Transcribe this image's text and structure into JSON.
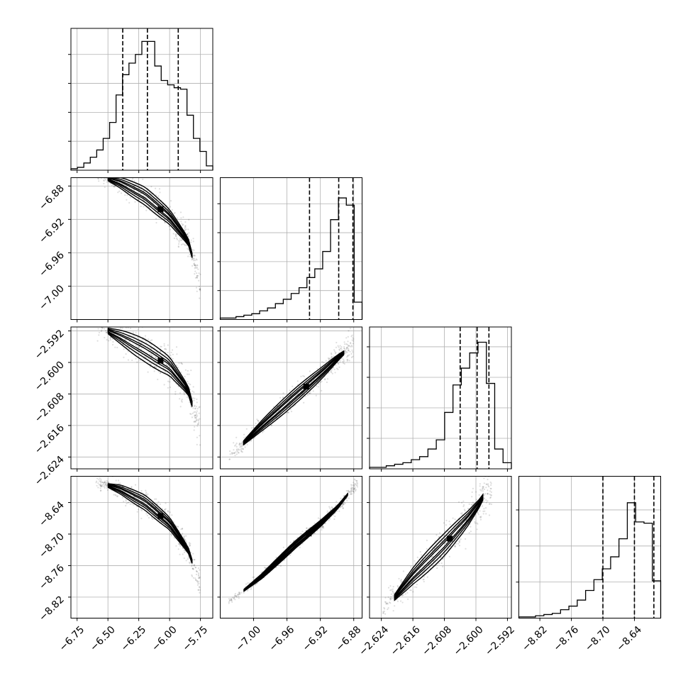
{
  "chart_data": {
    "type": "corner",
    "parameters": [
      {
        "range": [
          -6.8,
          -5.65
        ],
        "ticks": [
          -6.75,
          -6.5,
          -6.25,
          -6.0,
          -5.75
        ],
        "tick_labels": [
          "−6.75",
          "−6.50",
          "−6.25",
          "−6.00",
          "−5.75"
        ],
        "quantiles": [
          -6.38,
          -6.18,
          -5.93
        ]
      },
      {
        "range": [
          -7.04,
          -6.87
        ],
        "ticks": [
          -7.0,
          -6.96,
          -6.92,
          -6.88
        ],
        "tick_labels": [
          "−7.00",
          "−6.96",
          "−6.92",
          "−6.88"
        ],
        "quantiles": [
          -6.933,
          -6.898,
          -6.881
        ]
      },
      {
        "range": [
          -2.627,
          -2.591
        ],
        "ticks": [
          -2.624,
          -2.616,
          -2.608,
          -2.6,
          -2.592
        ],
        "tick_labels": [
          "−2.624",
          "−2.616",
          "−2.608",
          "−2.600",
          "−2.592"
        ],
        "quantiles": [
          -2.604,
          -2.5997,
          -2.5967
        ]
      },
      {
        "range": [
          -8.86,
          -8.59
        ],
        "ticks": [
          -8.82,
          -8.76,
          -8.7,
          -8.64
        ],
        "tick_labels": [
          "−8.82",
          "−8.76",
          "−8.70",
          "−8.64"
        ],
        "quantiles": [
          -8.7,
          -8.64,
          -8.603
        ]
      }
    ],
    "histograms": [
      [
        1,
        2,
        5,
        9,
        14,
        22,
        33,
        52,
        66,
        74,
        80,
        89,
        89,
        72,
        62,
        59,
        57,
        56,
        38,
        22,
        13,
        3
      ],
      [
        1,
        1,
        2,
        3,
        4,
        6,
        8,
        11,
        14,
        18,
        22,
        29,
        35,
        47,
        69,
        84,
        79,
        12
      ],
      [
        1,
        1,
        2,
        3,
        4,
        6,
        8,
        13,
        19,
        37,
        55,
        66,
        76,
        83,
        56,
        13,
        4
      ],
      [
        1,
        1,
        2,
        3,
        4,
        7,
        10,
        15,
        23,
        32,
        41,
        51,
        66,
        96,
        80,
        79,
        31
      ]
    ],
    "hist_ylim": [
      [
        0,
        98
      ],
      [
        0,
        98
      ],
      [
        0,
        93
      ],
      [
        0,
        118
      ]
    ],
    "hist_y_ticks": [
      [
        20,
        40,
        60,
        80
      ],
      [
        20,
        40,
        60,
        80
      ],
      [
        20,
        40,
        60,
        80
      ],
      [
        30,
        60,
        90
      ]
    ],
    "hist_y_tick_labels": [
      [],
      [],
      [],
      []
    ],
    "density_ridges": [
      {
        "x": 1,
        "y": 0,
        "ridge": [
          [
            -6.6,
            -6.866
          ],
          [
            -6.4,
            -6.876
          ],
          [
            -6.2,
            -6.892
          ],
          [
            -6.0,
            -6.917
          ],
          [
            -5.85,
            -6.946
          ],
          [
            -5.75,
            -7.0
          ]
        ],
        "spread": 0.006
      },
      {
        "x": 2,
        "y": 0,
        "ridge": [
          [
            -6.6,
            -2.5905
          ],
          [
            -6.4,
            -2.5935
          ],
          [
            -6.2,
            -2.597
          ],
          [
            -6.0,
            -2.601
          ],
          [
            -5.85,
            -2.607
          ],
          [
            -5.75,
            -2.618
          ]
        ],
        "spread": 0.0016
      },
      {
        "x": 2,
        "y": 1,
        "ridge": [
          [
            -7.03,
            -2.624
          ],
          [
            -6.99,
            -2.616
          ],
          [
            -6.95,
            -2.6085
          ],
          [
            -6.92,
            -2.603
          ],
          [
            -6.9,
            -2.599
          ],
          [
            -6.88,
            -2.5955
          ]
        ],
        "spread": 0.0011
      },
      {
        "x": 3,
        "y": 0,
        "ridge": [
          [
            -6.6,
            -8.6
          ],
          [
            -6.4,
            -8.615
          ],
          [
            -6.2,
            -8.64
          ],
          [
            -6.0,
            -8.68
          ],
          [
            -5.85,
            -8.73
          ],
          [
            -5.75,
            -8.8
          ]
        ],
        "spread": 0.008
      },
      {
        "x": 3,
        "y": 1,
        "ridge": [
          [
            -7.03,
            -8.83
          ],
          [
            -6.99,
            -8.78
          ],
          [
            -6.95,
            -8.72
          ],
          [
            -6.92,
            -8.68
          ],
          [
            -6.9,
            -8.65
          ],
          [
            -6.875,
            -8.6
          ]
        ],
        "spread": 0.004
      },
      {
        "x": 3,
        "y": 2,
        "ridge": [
          [
            -2.624,
            -8.85
          ],
          [
            -2.616,
            -8.78
          ],
          [
            -2.608,
            -8.72
          ],
          [
            -2.602,
            -8.67
          ],
          [
            -2.599,
            -8.64
          ],
          [
            -2.596,
            -8.6
          ]
        ],
        "spread": 0.012
      }
    ],
    "grid": true,
    "colors": {
      "marks": "#000000",
      "grid": "#b0b0b0",
      "background": "#ffffff"
    }
  }
}
